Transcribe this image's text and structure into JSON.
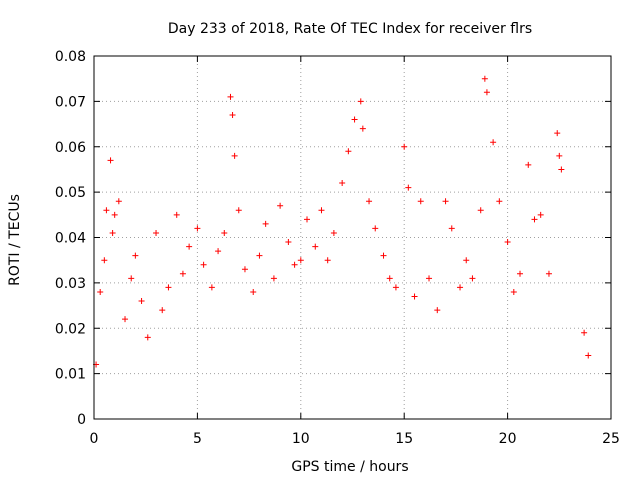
{
  "chart_data": {
    "type": "scatter",
    "title": "Day 233 of 2018, Rate Of TEC Index for receiver flrs",
    "xlabel": "GPS time / hours",
    "ylabel": "ROTI / TECUs",
    "xlim": [
      0,
      25
    ],
    "ylim": [
      0,
      0.08
    ],
    "xticks": [
      "0",
      "5",
      "10",
      "15",
      "20",
      "25"
    ],
    "yticks": [
      "0",
      "0.01",
      "0.02",
      "0.03",
      "0.04",
      "0.05",
      "0.06",
      "0.07",
      "0.08"
    ],
    "grid": true,
    "marker": "+",
    "marker_color": "#ff0000",
    "series": [
      {
        "name": "",
        "x": [
          0.1,
          0.3,
          0.5,
          0.6,
          0.8,
          0.9,
          1.0,
          1.2,
          1.5,
          1.8,
          2.0,
          2.3,
          2.6,
          3.0,
          3.3,
          3.6,
          4.0,
          4.3,
          4.6,
          5.0,
          5.3,
          5.7,
          6.0,
          6.3,
          6.6,
          6.7,
          6.8,
          7.0,
          7.3,
          7.7,
          8.0,
          8.3,
          8.7,
          9.0,
          9.4,
          9.7,
          10.0,
          10.3,
          10.7,
          11.0,
          11.3,
          11.6,
          12.0,
          12.3,
          12.6,
          12.9,
          13.0,
          13.3,
          13.6,
          14.0,
          14.3,
          14.6,
          15.0,
          15.2,
          15.5,
          15.8,
          16.2,
          16.6,
          17.0,
          17.3,
          17.7,
          18.0,
          18.3,
          18.7,
          18.9,
          19.0,
          19.3,
          19.6,
          20.0,
          20.3,
          20.6,
          21.0,
          21.3,
          21.6,
          22.0,
          22.4,
          22.5,
          22.6,
          23.7,
          23.9
        ],
        "y": [
          0.012,
          0.028,
          0.035,
          0.046,
          0.057,
          0.041,
          0.045,
          0.048,
          0.022,
          0.031,
          0.036,
          0.026,
          0.018,
          0.041,
          0.024,
          0.029,
          0.045,
          0.032,
          0.038,
          0.042,
          0.034,
          0.029,
          0.037,
          0.041,
          0.071,
          0.067,
          0.058,
          0.046,
          0.033,
          0.028,
          0.036,
          0.043,
          0.031,
          0.047,
          0.039,
          0.034,
          0.035,
          0.044,
          0.038,
          0.046,
          0.035,
          0.041,
          0.052,
          0.059,
          0.066,
          0.07,
          0.064,
          0.048,
          0.042,
          0.036,
          0.031,
          0.029,
          0.06,
          0.051,
          0.027,
          0.048,
          0.031,
          0.024,
          0.048,
          0.042,
          0.029,
          0.035,
          0.031,
          0.046,
          0.075,
          0.072,
          0.061,
          0.048,
          0.039,
          0.028,
          0.032,
          0.056,
          0.044,
          0.045,
          0.032,
          0.063,
          0.058,
          0.055,
          0.019,
          0.014
        ],
        "color": "#ff0000"
      }
    ]
  }
}
